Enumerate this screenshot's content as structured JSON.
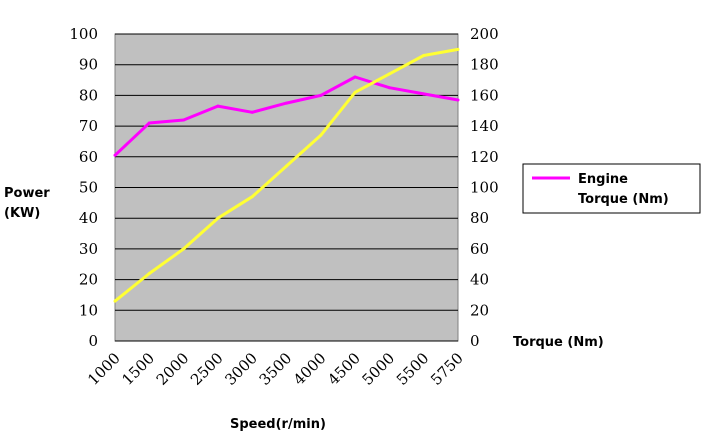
{
  "chart_data": {
    "type": "line",
    "categories": [
      "1000",
      "1500",
      "2000",
      "2500",
      "3000",
      "3500",
      "4000",
      "4500",
      "5000",
      "5500",
      "5750"
    ],
    "xlabel": "Speed(r/min)",
    "ylabel_left": [
      "Power",
      "(KW)"
    ],
    "ylabel_right": "Torque (Nm)",
    "ylim_left": [
      0,
      100
    ],
    "ylim_right": [
      0,
      200
    ],
    "yticks_left": [
      "0",
      "10",
      "20",
      "30",
      "40",
      "50",
      "60",
      "70",
      "80",
      "90",
      "100"
    ],
    "yticks_right": [
      "0",
      "20",
      "40",
      "60",
      "80",
      "100",
      "120",
      "140",
      "160",
      "180",
      "200"
    ],
    "plot_background": "#c0c0c0",
    "grid": "horizontal",
    "legend": {
      "position": "right",
      "entries": [
        "Engine",
        "Torque (Nm)"
      ]
    },
    "series": [
      {
        "name": "Engine Torque (Nm)",
        "axis": "right",
        "color": "#ff00ff",
        "values": [
          121,
          142,
          144,
          153,
          149,
          155,
          160,
          172,
          165,
          161,
          157
        ]
      },
      {
        "axis": "left",
        "color": "#ffff33",
        "values": [
          13,
          22,
          30,
          40,
          47,
          57,
          67,
          81,
          87,
          93,
          95
        ]
      }
    ]
  }
}
